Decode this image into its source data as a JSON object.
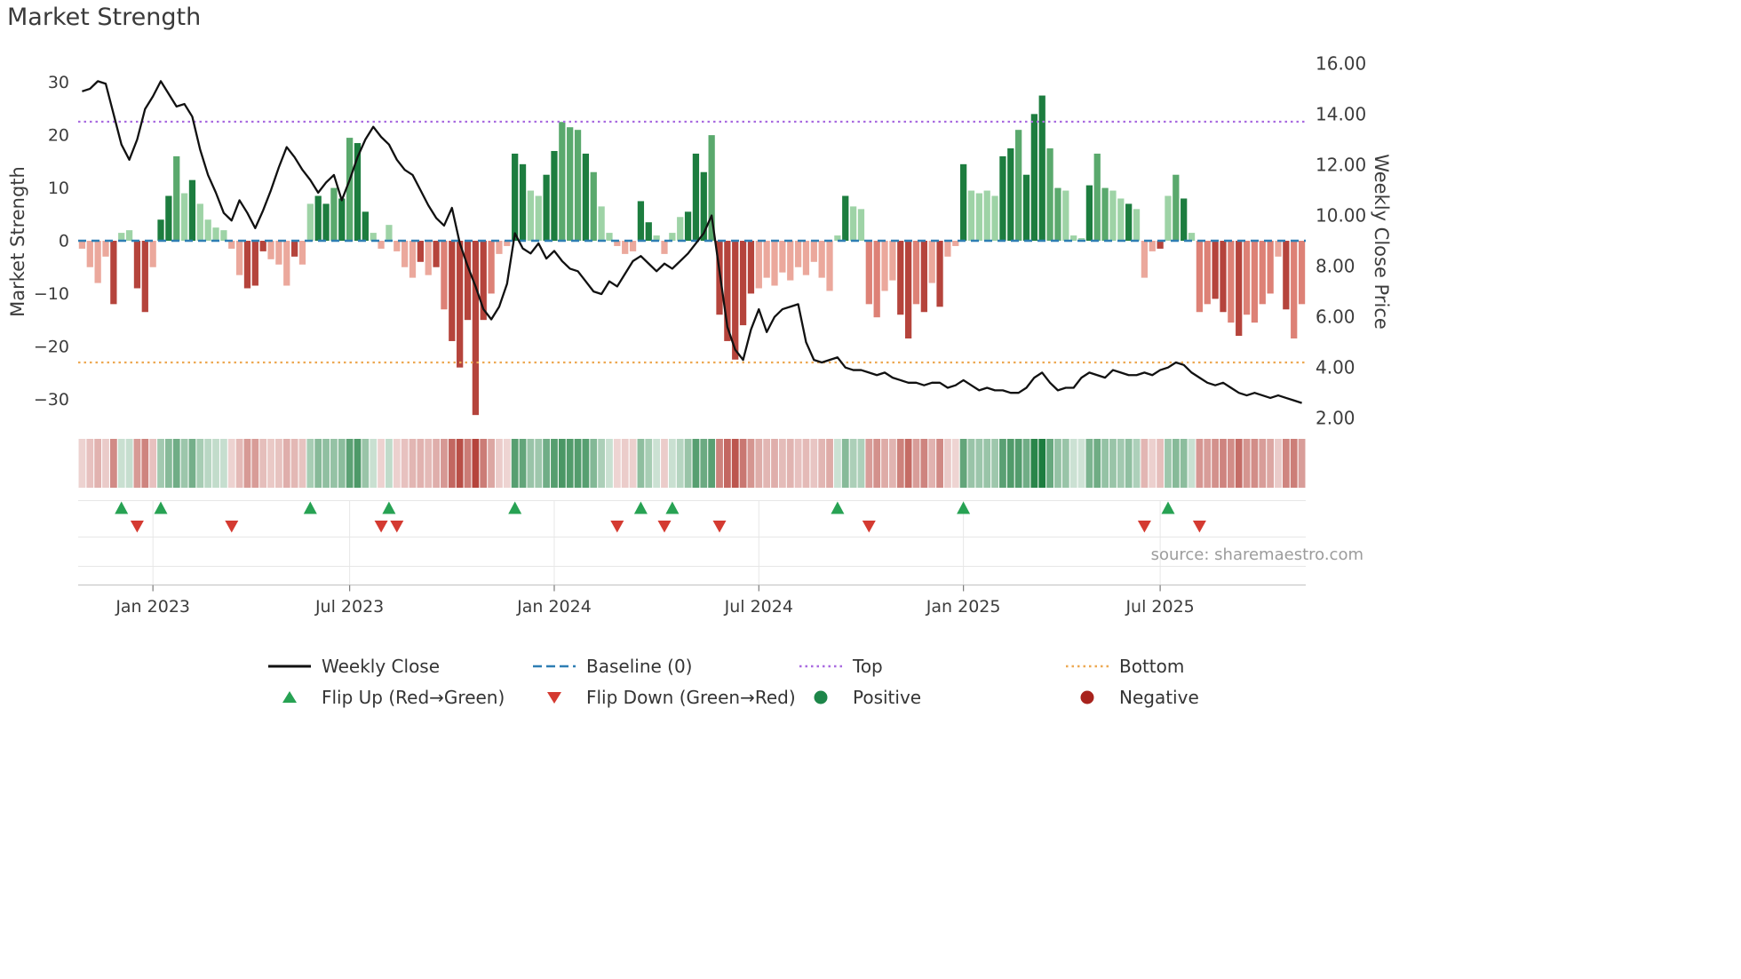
{
  "page": {
    "title": "Market Strength",
    "source": "source: sharemaestro.com"
  },
  "colors": {
    "bar_positive_dark": "#1d7d3f",
    "bar_positive_mid": "#5aa96d",
    "bar_positive_light": "#9ed3a6",
    "bar_negative_dark": "#b5443c",
    "bar_negative_mid": "#dd8176",
    "bar_negative_light": "#eba89c",
    "price_line": "#111111",
    "baseline": "#2e7eb3",
    "band_top": "#a96be0",
    "band_bottom": "#eda953",
    "flip_up": "#27a253",
    "flip_down": "#d43a31",
    "positive_dot": "#1d8649",
    "negative_dot": "#a8231d",
    "grid": "#e7e7e7",
    "axis": "#c9c9c9",
    "text": "#3c3c3c",
    "muted_text": "#9c9c9c"
  },
  "chart_data": {
    "type": "bar",
    "title": "Market Strength",
    "n_weeks": 156,
    "x_unit": "week",
    "x_ticks": [
      {
        "label": "Jan 2023",
        "index": 9
      },
      {
        "label": "Jul 2023",
        "index": 34
      },
      {
        "label": "Jan 2024",
        "index": 60
      },
      {
        "label": "Jul 2024",
        "index": 86
      },
      {
        "label": "Jan 2025",
        "index": 112
      },
      {
        "label": "Jul 2025",
        "index": 137
      }
    ],
    "ylabel_left": "Market Strength",
    "ylabel_right": "Weekly Close Price",
    "ylim_left": [
      -36,
      35.5
    ],
    "ylim_right": [
      1.5,
      16.4
    ],
    "yticks_left": {
      "values": [
        30,
        20,
        10,
        0,
        -10,
        -20,
        -30
      ],
      "labels": [
        "30",
        "20",
        "10",
        "0",
        "−10",
        "−20",
        "−30"
      ]
    },
    "yticks_right": {
      "values": [
        16,
        14,
        12,
        10,
        8,
        6,
        4,
        2
      ],
      "labels": [
        "16.00",
        "14.00",
        "12.00",
        "10.00",
        "8.00",
        "6.00",
        "4.00",
        "2.00"
      ]
    },
    "baseline": 0,
    "bands": {
      "top": 13.7,
      "bottom": 4.2,
      "axis": "right"
    },
    "flip_up_indices": [
      5,
      10,
      29,
      39,
      55,
      71,
      75,
      96,
      112,
      138
    ],
    "flip_down_indices": [
      7,
      19,
      38,
      40,
      68,
      74,
      81,
      100,
      135,
      142
    ],
    "series": [
      {
        "name": "Market Strength",
        "type": "bar",
        "axis": "left",
        "values": [
          -1.5,
          -5,
          -8,
          -3,
          -12,
          1.5,
          2,
          -9,
          -13.5,
          -5,
          4,
          8.5,
          16,
          9,
          11.5,
          7,
          4,
          2.5,
          2,
          -1.5,
          -6.5,
          -9,
          -8.5,
          -2,
          -3.5,
          -4.5,
          -8.5,
          -3,
          -4.5,
          7,
          8.5,
          7,
          10,
          8,
          19.5,
          18.5,
          5.5,
          1.5,
          -1.5,
          3,
          -2,
          -5,
          -7,
          -4,
          -6.5,
          -5,
          -13,
          -19,
          -24,
          -15,
          -33,
          -15,
          -10,
          -2.5,
          -1,
          16.5,
          14.5,
          9.5,
          8.5,
          12.5,
          17,
          22.5,
          21.5,
          21,
          16.5,
          13,
          6.5,
          1.5,
          -1,
          -2.5,
          -2,
          7.5,
          3.5,
          1,
          -2.5,
          1.5,
          4.5,
          5.5,
          16.5,
          13,
          20,
          -14,
          -19,
          -22.5,
          -16,
          -10,
          -9,
          -7,
          -8.5,
          -6,
          -7.5,
          -5,
          -6.5,
          -4,
          -7,
          -9.5,
          1,
          8.5,
          6.5,
          6,
          -12,
          -14.5,
          -9.5,
          -7.5,
          -14,
          -18.5,
          -12,
          -13.5,
          -8,
          -12.5,
          -3,
          -1,
          14.5,
          9.5,
          9,
          9.5,
          8.5,
          16,
          17.5,
          21,
          12.5,
          24,
          27.5,
          17.5,
          10,
          9.5,
          1,
          0.5,
          10.5,
          16.5,
          10,
          9.5,
          8,
          7,
          6,
          -7,
          -2,
          -1.5,
          8.5,
          12.5,
          8,
          1.5,
          -13.5,
          -12,
          -11,
          -13.5,
          -15.5,
          -18,
          -14,
          -15.5,
          -12,
          -10,
          -3,
          -13,
          -18.5,
          -12
        ],
        "shades": "lllldllddlddlldlllllldddllldllddldlddlllllldldldddddlllddllddllldllllllddlllldddldddddllllllllllldllllllddldldlldllllddldddllllldlllldllldlldlllddldllllldl"
      },
      {
        "name": "Weekly Close",
        "type": "line",
        "axis": "right",
        "values": [
          14.9,
          15.0,
          15.3,
          15.2,
          14.0,
          12.8,
          12.2,
          13.0,
          14.2,
          14.7,
          15.3,
          14.8,
          14.3,
          14.4,
          13.9,
          12.6,
          11.6,
          10.9,
          10.1,
          9.8,
          10.6,
          10.1,
          9.5,
          10.2,
          11.0,
          11.9,
          12.7,
          12.3,
          11.8,
          11.4,
          10.9,
          11.3,
          11.6,
          10.6,
          11.4,
          12.3,
          13.0,
          13.5,
          13.1,
          12.8,
          12.2,
          11.8,
          11.6,
          11.0,
          10.4,
          9.9,
          9.6,
          10.3,
          8.9,
          8.0,
          7.2,
          6.3,
          5.9,
          6.4,
          7.3,
          9.3,
          8.7,
          8.5,
          8.9,
          8.3,
          8.6,
          8.2,
          7.9,
          7.8,
          7.4,
          7.0,
          6.9,
          7.4,
          7.2,
          7.7,
          8.2,
          8.4,
          8.1,
          7.8,
          8.1,
          7.9,
          8.2,
          8.5,
          8.9,
          9.3,
          10.0,
          7.8,
          5.6,
          4.7,
          4.3,
          5.5,
          6.3,
          5.4,
          6.0,
          6.3,
          6.4,
          6.5,
          5.0,
          4.3,
          4.2,
          4.3,
          4.4,
          4.0,
          3.9,
          3.9,
          3.8,
          3.7,
          3.8,
          3.6,
          3.5,
          3.4,
          3.4,
          3.3,
          3.4,
          3.4,
          3.2,
          3.3,
          3.5,
          3.3,
          3.1,
          3.2,
          3.1,
          3.1,
          3.0,
          3.0,
          3.2,
          3.6,
          3.8,
          3.4,
          3.1,
          3.2,
          3.2,
          3.6,
          3.8,
          3.7,
          3.6,
          3.9,
          3.8,
          3.7,
          3.7,
          3.8,
          3.7,
          3.9,
          4.0,
          4.2,
          4.1,
          3.8,
          3.6,
          3.4,
          3.3,
          3.4,
          3.2,
          3.0,
          2.9,
          3.0,
          2.9,
          2.8,
          2.9,
          2.8,
          2.7,
          2.6
        ]
      }
    ]
  },
  "legend": {
    "rows": [
      [
        {
          "id": "weekly-close",
          "label": "Weekly Close",
          "swatch": "line",
          "color": "#111111",
          "dash": ""
        },
        {
          "id": "baseline",
          "label": "Baseline (0)",
          "swatch": "line",
          "color": "#2e7eb3",
          "dash": "10 5"
        },
        {
          "id": "top",
          "label": "Top",
          "swatch": "line",
          "color": "#a96be0",
          "dash": "2.5 4"
        },
        {
          "id": "bottom",
          "label": "Bottom",
          "swatch": "line",
          "color": "#eda953",
          "dash": "2.5 4"
        }
      ],
      [
        {
          "id": "flip-up",
          "label": "Flip Up (Red→Green)",
          "swatch": "triangle-up",
          "color": "#27a253"
        },
        {
          "id": "flip-down",
          "label": "Flip Down (Green→Red)",
          "swatch": "triangle-down",
          "color": "#d43a31"
        },
        {
          "id": "positive",
          "label": "Positive",
          "swatch": "circle",
          "color": "#1d8649"
        },
        {
          "id": "negative",
          "label": "Negative",
          "swatch": "circle",
          "color": "#a8231d"
        }
      ]
    ]
  }
}
